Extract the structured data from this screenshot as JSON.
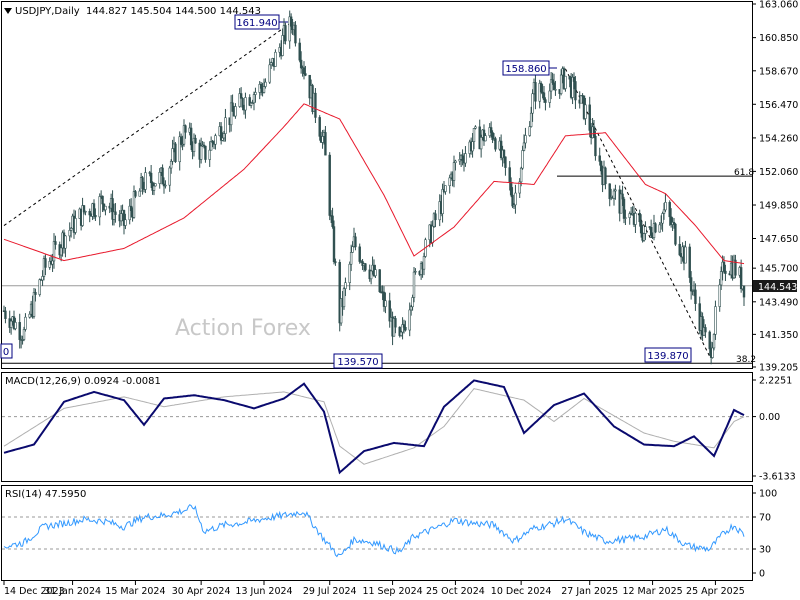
{
  "symbol_line": {
    "symbol": "USDJPY,Daily",
    "ohlc": "144.827 145.504 144.500 144.543"
  },
  "watermark": "Action Forex",
  "colors": {
    "candle": "#2f4f4f",
    "ma": "#e8192c",
    "macd": "#0a0a6e",
    "signal": "#b0b0b0",
    "rsi": "#3399ff",
    "label_border": "#000080",
    "last_price_bg": "#1a1a1a"
  },
  "chart_data": [
    {
      "type": "line",
      "title": "USDJPY,Daily",
      "series": [
        {
          "name": "Close",
          "x": [
            "2023-12-14",
            "2023-12-28",
            "2024-01-11",
            "2024-01-25",
            "2024-02-08",
            "2024-02-22",
            "2024-03-07",
            "2024-03-21",
            "2024-04-04",
            "2024-04-18",
            "2024-05-02",
            "2024-05-16",
            "2024-05-30",
            "2024-06-13",
            "2024-06-27",
            "2024-07-03",
            "2024-07-11",
            "2024-07-25",
            "2024-08-05",
            "2024-08-15",
            "2024-08-29",
            "2024-09-16",
            "2024-09-26",
            "2024-10-10",
            "2024-10-24",
            "2024-11-07",
            "2024-11-21",
            "2024-12-05",
            "2024-12-19",
            "2025-01-02",
            "2025-01-10",
            "2025-01-24",
            "2025-02-07",
            "2025-02-21",
            "2025-03-07",
            "2025-03-21",
            "2025-04-04",
            "2025-04-11",
            "2025-04-21",
            "2025-05-01",
            "2025-05-08",
            "2025-05-15"
          ],
          "values": [
            142.9,
            141.4,
            145.6,
            147.8,
            149.4,
            150.2,
            148.6,
            151.3,
            151.7,
            154.6,
            153.1,
            155.2,
            156.8,
            157.7,
            160.9,
            161.9,
            158.9,
            153.9,
            142.5,
            147.3,
            145.2,
            140.6,
            144.8,
            148.6,
            152.3,
            154.2,
            154.6,
            150.1,
            157.3,
            157.4,
            158.3,
            156.0,
            151.3,
            149.4,
            147.9,
            149.5,
            146.4,
            143.4,
            140.0,
            146.0,
            145.8,
            144.54
          ]
        },
        {
          "name": "MA",
          "x": [
            "2023-12-14",
            "2024-01-25",
            "2024-03-07",
            "2024-04-18",
            "2024-05-30",
            "2024-06-27",
            "2024-07-11",
            "2024-08-05",
            "2024-09-05",
            "2024-09-26",
            "2024-10-24",
            "2024-11-21",
            "2024-12-19",
            "2025-01-10",
            "2025-02-07",
            "2025-03-07",
            "2025-03-21",
            "2025-04-11",
            "2025-05-01",
            "2025-05-15"
          ],
          "values": [
            147.6,
            146.2,
            147.0,
            149.0,
            152.2,
            155.0,
            156.5,
            155.5,
            150.5,
            146.5,
            148.4,
            151.4,
            151.2,
            154.4,
            154.6,
            151.2,
            150.6,
            148.5,
            146.2,
            146.0
          ]
        }
      ],
      "y_ticks": [
        "163.060",
        "160.850",
        "158.670",
        "156.470",
        "154.260",
        "152.060",
        "149.850",
        "147.650",
        "145.700",
        "143.490",
        "141.350",
        "139.205"
      ],
      "ylim": [
        139.205,
        163.06
      ],
      "x_ticks": [
        "14 Dec 2023",
        "31 Jan 2024",
        "15 Mar 2024",
        "30 Apr 2024",
        "13 Jun 2024",
        "29 Jul 2024",
        "11 Sep 2024",
        "25 Oct 2024",
        "10 Dec 2024",
        "27 Jan 2025",
        "12 Mar 2025",
        "25 Apr 2025"
      ],
      "annotations": {
        "peak_1": "161.940",
        "peak_2": "158.860",
        "trough_1": "139.570",
        "trough_2": "139.870",
        "fib_high": "61.8",
        "fib_low": "38.2",
        "left_edge": "0",
        "last_price": "144.543"
      }
    },
    {
      "type": "line",
      "title": "MACD(12,26,9) 0.0924 -0.0081",
      "y_ticks": [
        "2.2251",
        "0.00",
        "-3.6133"
      ],
      "ylim": [
        -3.6133,
        2.2251
      ],
      "series": [
        {
          "name": "MACD",
          "x": [
            "2023-12-14",
            "2024-01-04",
            "2024-01-25",
            "2024-02-15",
            "2024-03-07",
            "2024-03-21",
            "2024-04-04",
            "2024-04-25",
            "2024-05-16",
            "2024-06-06",
            "2024-06-27",
            "2024-07-11",
            "2024-07-25",
            "2024-08-05",
            "2024-08-22",
            "2024-09-12",
            "2024-10-03",
            "2024-10-17",
            "2024-11-07",
            "2024-11-28",
            "2024-12-12",
            "2025-01-02",
            "2025-01-23",
            "2025-02-13",
            "2025-03-06",
            "2025-03-27",
            "2025-04-10",
            "2025-04-24",
            "2025-05-08",
            "2025-05-15"
          ],
          "values": [
            -2.2,
            -1.7,
            0.9,
            1.5,
            1.0,
            -0.5,
            1.1,
            1.3,
            1.0,
            0.5,
            1.1,
            2.0,
            0.3,
            -3.4,
            -2.1,
            -1.6,
            -1.8,
            0.6,
            2.2,
            1.8,
            -1.0,
            0.7,
            1.4,
            -0.6,
            -1.7,
            -1.8,
            -1.2,
            -2.4,
            0.4,
            0.09
          ]
        },
        {
          "name": "Signal",
          "x": [
            "2023-12-14",
            "2024-01-25",
            "2024-03-07",
            "2024-04-04",
            "2024-05-16",
            "2024-06-27",
            "2024-07-25",
            "2024-08-05",
            "2024-08-22",
            "2024-09-26",
            "2024-10-17",
            "2024-11-07",
            "2024-12-12",
            "2025-01-02",
            "2025-01-23",
            "2025-03-06",
            "2025-03-27",
            "2025-04-24",
            "2025-05-08",
            "2025-05-15"
          ],
          "values": [
            -1.8,
            0.5,
            1.2,
            0.6,
            1.2,
            1.5,
            0.9,
            -1.8,
            -2.9,
            -1.9,
            -0.6,
            1.7,
            1.0,
            -0.3,
            1.1,
            -1.0,
            -1.5,
            -1.9,
            -0.3,
            -0.01
          ]
        }
      ]
    },
    {
      "type": "line",
      "title": "RSI(14) 47.5950",
      "y_ticks": [
        "100",
        "70",
        "30",
        "0"
      ],
      "ylim": [
        0,
        100
      ],
      "series": [
        {
          "name": "RSI",
          "x": [
            "2023-12-14",
            "2023-12-28",
            "2024-01-11",
            "2024-01-25",
            "2024-02-08",
            "2024-02-22",
            "2024-03-07",
            "2024-03-21",
            "2024-04-04",
            "2024-04-18",
            "2024-04-25",
            "2024-05-02",
            "2024-05-16",
            "2024-05-30",
            "2024-06-13",
            "2024-06-27",
            "2024-07-11",
            "2024-07-25",
            "2024-08-05",
            "2024-08-15",
            "2024-08-29",
            "2024-09-16",
            "2024-09-26",
            "2024-10-10",
            "2024-10-24",
            "2024-11-07",
            "2024-11-21",
            "2024-12-05",
            "2024-12-19",
            "2025-01-02",
            "2025-01-10",
            "2025-01-24",
            "2025-02-07",
            "2025-02-21",
            "2025-03-07",
            "2025-03-21",
            "2025-04-04",
            "2025-04-11",
            "2025-04-21",
            "2025-05-01",
            "2025-05-08",
            "2025-05-15"
          ],
          "values": [
            33,
            38,
            58,
            62,
            67,
            65,
            58,
            70,
            72,
            78,
            83,
            52,
            60,
            63,
            68,
            72,
            77,
            42,
            20,
            42,
            38,
            26,
            46,
            55,
            66,
            62,
            60,
            40,
            56,
            62,
            68,
            50,
            40,
            42,
            46,
            55,
            35,
            32,
            30,
            50,
            60,
            47.6
          ]
        }
      ]
    }
  ]
}
